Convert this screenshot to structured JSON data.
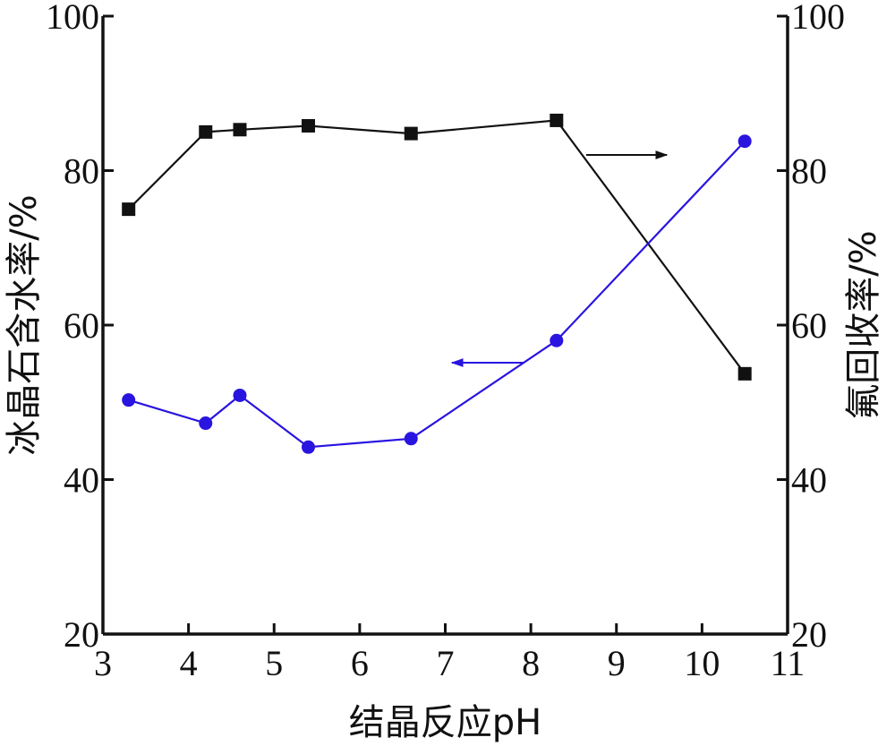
{
  "chart_data": {
    "type": "line",
    "xlabel": "结晶反应pH",
    "ylabel_left": "冰晶石含水率/%",
    "ylabel_right": "氟回收率/%",
    "xlim": [
      3,
      11
    ],
    "ylim_left": [
      20,
      100
    ],
    "ylim_right": [
      20,
      100
    ],
    "x_ticks": [
      "3",
      "4",
      "5",
      "6",
      "7",
      "8",
      "9",
      "10",
      "11"
    ],
    "y_ticks_left": [
      "20",
      "40",
      "60",
      "80",
      "100"
    ],
    "y_ticks_right": [
      "20",
      "40",
      "60",
      "80",
      "100"
    ],
    "grid": false,
    "series": [
      {
        "key": "fluorine-recovery",
        "axis": "right",
        "marker": "square",
        "color": "#111111",
        "points": [
          [
            3.3,
            75
          ],
          [
            4.2,
            85
          ],
          [
            4.6,
            85.3
          ],
          [
            5.4,
            85.8
          ],
          [
            6.6,
            84.8
          ],
          [
            8.3,
            86.5
          ],
          [
            10.5,
            53.7
          ]
        ],
        "arrow_direction": "right"
      },
      {
        "key": "water-content",
        "axis": "left",
        "marker": "circle",
        "color": "#2a14e0",
        "points": [
          [
            3.3,
            50.3
          ],
          [
            4.2,
            47.3
          ],
          [
            4.6,
            50.9
          ],
          [
            5.4,
            44.2
          ],
          [
            6.6,
            45.3
          ],
          [
            8.3,
            58
          ],
          [
            10.5,
            83.8
          ]
        ],
        "arrow_direction": "left"
      }
    ]
  }
}
